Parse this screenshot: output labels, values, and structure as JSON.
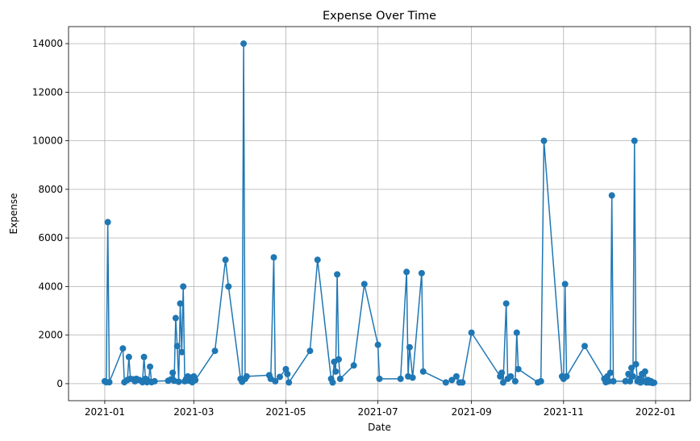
{
  "chart_data": {
    "type": "line",
    "title": "Expense Over Time",
    "xlabel": "Date",
    "ylabel": "Expense",
    "grid": true,
    "color": "#1f77b4",
    "xlim": [
      "2020-12-08",
      "2022-01-24"
    ],
    "ylim": [
      -700,
      14700
    ],
    "x_ticks": [
      "2021-01",
      "2021-03",
      "2021-05",
      "2021-07",
      "2021-09",
      "2021-11",
      "2022-01"
    ],
    "y_ticks": [
      0,
      2000,
      4000,
      6000,
      8000,
      10000,
      12000,
      14000
    ],
    "series": [
      {
        "marker": "circle",
        "points": [
          [
            "2021-01-01",
            100
          ],
          [
            "2021-01-02",
            60
          ],
          [
            "2021-01-03",
            6650
          ],
          [
            "2021-01-04",
            60
          ],
          [
            "2021-01-13",
            1450
          ],
          [
            "2021-01-14",
            60
          ],
          [
            "2021-01-16",
            150
          ],
          [
            "2021-01-17",
            1100
          ],
          [
            "2021-01-18",
            200
          ],
          [
            "2021-01-20",
            180
          ],
          [
            "2021-01-21",
            100
          ],
          [
            "2021-01-22",
            200
          ],
          [
            "2021-01-24",
            150
          ],
          [
            "2021-01-26",
            60
          ],
          [
            "2021-01-27",
            1100
          ],
          [
            "2021-01-28",
            200
          ],
          [
            "2021-01-29",
            60
          ],
          [
            "2021-01-30",
            100
          ],
          [
            "2021-01-31",
            700
          ],
          [
            "2021-02-01",
            60
          ],
          [
            "2021-02-03",
            100
          ],
          [
            "2021-02-12",
            120
          ],
          [
            "2021-02-14",
            180
          ],
          [
            "2021-02-15",
            450
          ],
          [
            "2021-02-16",
            120
          ],
          [
            "2021-02-17",
            2700
          ],
          [
            "2021-02-18",
            1550
          ],
          [
            "2021-02-19",
            80
          ],
          [
            "2021-02-20",
            3300
          ],
          [
            "2021-02-21",
            1300
          ],
          [
            "2021-02-22",
            4000
          ],
          [
            "2021-02-23",
            100
          ],
          [
            "2021-02-24",
            200
          ],
          [
            "2021-02-25",
            300
          ],
          [
            "2021-02-26",
            120
          ],
          [
            "2021-02-27",
            250
          ],
          [
            "2021-02-28",
            60
          ],
          [
            "2021-03-01",
            300
          ],
          [
            "2021-03-02",
            150
          ],
          [
            "2021-03-15",
            1350
          ],
          [
            "2021-03-22",
            5100
          ],
          [
            "2021-03-24",
            4000
          ],
          [
            "2021-04-01",
            200
          ],
          [
            "2021-04-02",
            80
          ],
          [
            "2021-04-03",
            14000
          ],
          [
            "2021-04-04",
            200
          ],
          [
            "2021-04-05",
            300
          ],
          [
            "2021-04-20",
            350
          ],
          [
            "2021-04-21",
            200
          ],
          [
            "2021-04-23",
            5200
          ],
          [
            "2021-04-24",
            100
          ],
          [
            "2021-04-27",
            280
          ],
          [
            "2021-05-01",
            600
          ],
          [
            "2021-05-02",
            400
          ],
          [
            "2021-05-03",
            50
          ],
          [
            "2021-05-17",
            1350
          ],
          [
            "2021-05-22",
            5100
          ],
          [
            "2021-05-31",
            200
          ],
          [
            "2021-06-01",
            50
          ],
          [
            "2021-06-02",
            900
          ],
          [
            "2021-06-03",
            500
          ],
          [
            "2021-06-04",
            4500
          ],
          [
            "2021-06-05",
            1000
          ],
          [
            "2021-06-06",
            200
          ],
          [
            "2021-06-15",
            750
          ],
          [
            "2021-06-22",
            4100
          ],
          [
            "2021-07-01",
            1600
          ],
          [
            "2021-07-02",
            200
          ],
          [
            "2021-07-16",
            200
          ],
          [
            "2021-07-20",
            4600
          ],
          [
            "2021-07-21",
            300
          ],
          [
            "2021-07-22",
            1500
          ],
          [
            "2021-07-24",
            250
          ],
          [
            "2021-07-30",
            4550
          ],
          [
            "2021-07-31",
            500
          ],
          [
            "2021-08-15",
            50
          ],
          [
            "2021-08-19",
            150
          ],
          [
            "2021-08-22",
            300
          ],
          [
            "2021-08-24",
            50
          ],
          [
            "2021-08-26",
            50
          ],
          [
            "2021-09-01",
            2100
          ],
          [
            "2021-09-20",
            300
          ],
          [
            "2021-09-21",
            450
          ],
          [
            "2021-09-22",
            50
          ],
          [
            "2021-09-24",
            3300
          ],
          [
            "2021-09-25",
            200
          ],
          [
            "2021-09-27",
            300
          ],
          [
            "2021-09-30",
            100
          ],
          [
            "2021-10-01",
            2100
          ],
          [
            "2021-10-02",
            600
          ],
          [
            "2021-10-15",
            50
          ],
          [
            "2021-10-17",
            100
          ],
          [
            "2021-10-19",
            10000
          ],
          [
            "2021-10-31",
            300
          ],
          [
            "2021-11-01",
            200
          ],
          [
            "2021-11-02",
            4100
          ],
          [
            "2021-11-03",
            300
          ],
          [
            "2021-11-15",
            1550
          ],
          [
            "2021-11-28",
            200
          ],
          [
            "2021-11-29",
            60
          ],
          [
            "2021-11-30",
            300
          ],
          [
            "2021-12-01",
            100
          ],
          [
            "2021-12-02",
            450
          ],
          [
            "2021-12-03",
            7750
          ],
          [
            "2021-12-04",
            100
          ],
          [
            "2021-12-12",
            100
          ],
          [
            "2021-12-14",
            400
          ],
          [
            "2021-12-15",
            100
          ],
          [
            "2021-12-16",
            650
          ],
          [
            "2021-12-17",
            300
          ],
          [
            "2021-12-18",
            10000
          ],
          [
            "2021-12-19",
            800
          ],
          [
            "2021-12-20",
            100
          ],
          [
            "2021-12-21",
            200
          ],
          [
            "2021-12-22",
            50
          ],
          [
            "2021-12-23",
            400
          ],
          [
            "2021-12-24",
            100
          ],
          [
            "2021-12-25",
            500
          ],
          [
            "2021-12-26",
            50
          ],
          [
            "2021-12-27",
            150
          ],
          [
            "2021-12-28",
            50
          ],
          [
            "2021-12-29",
            100
          ],
          [
            "2021-12-30",
            30
          ],
          [
            "2021-12-31",
            40
          ]
        ]
      }
    ]
  }
}
